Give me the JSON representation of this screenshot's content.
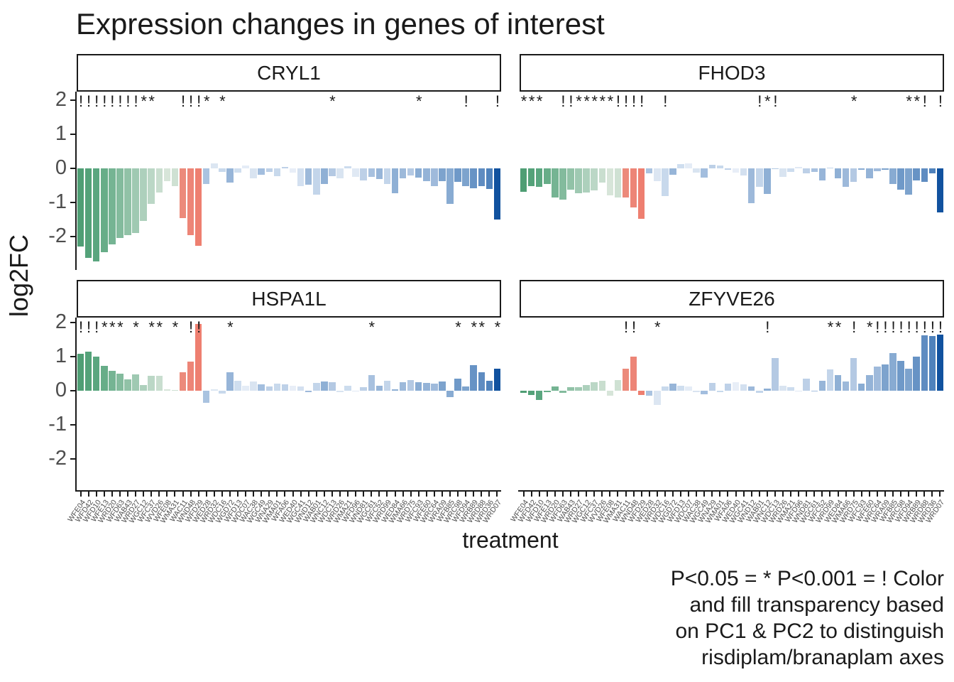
{
  "title": "Expression changes in genes of interest",
  "caption": {
    "lines": [
      "P<0.05 = * P<0.001 = ! Color",
      "and fill transparency based",
      "on PC1 & PC2 to distinguish",
      "risdiplam/branaplam axes"
    ]
  },
  "chart_data": {
    "type": "bar",
    "title": "Expression changes in genes of interest",
    "xlabel": "treatment",
    "ylabel": "log2FC",
    "yticks": [
      2,
      1,
      0,
      -1,
      -2
    ],
    "ylim": [
      -2.95,
      2.2
    ],
    "grid": false,
    "sig_legend": {
      "*": "P<0.05",
      "!": "P<0.001"
    },
    "color_note": "Color and fill transparency based on PC1 & PC2 to distinguish risdiplam/branaplam axes; greens then salmon then blues, same order in every facet",
    "categories": [
      "WFE04",
      "WFD42",
      "WFD10",
      "WFE13",
      "WRD20",
      "WFD63",
      "WAB43",
      "WRD27",
      "WGC12",
      "WFC37",
      "WVD26",
      "WFE08",
      "WMA31",
      "WAC11",
      "WND48",
      "WFD29",
      "WED28",
      "WRD32",
      "WDC16",
      "WGD72",
      "WFD13",
      "WDC07",
      "WAC38",
      "WGC49",
      "WNA29",
      "WMA01",
      "WFA06",
      "WED40",
      "WGC41",
      "WND12",
      "WAB01",
      "WNC12",
      "WDC13",
      "WRD26",
      "WMA21",
      "WFD96",
      "WND81",
      "WGC61",
      "WFC52",
      "WRD99",
      "WED84",
      "WMA66",
      "WRD75",
      "WFC93",
      "WFE60",
      "WRC64",
      "WRA09",
      "WFB85",
      "WRC98",
      "WFD94",
      "WRB89",
      "WRD88",
      "WRD36",
      "WRD07"
    ],
    "bar_colors": [
      "#4f9e74",
      "#54a279",
      "#5aa67f",
      "#67ad88",
      "#75b493",
      "#83bb9d",
      "#91c2a7",
      "#9fc9b2",
      "#add0bc",
      "#bbd7c6",
      "#c9decf",
      "#d7e5d9",
      "#cfe1d3",
      "#ec8a7b",
      "#ed8577",
      "#ee7f70",
      "#aac3e0",
      "#dce6f2",
      "#c8d9ec",
      "#97b5d8",
      "#cfdeef",
      "#e4ecf6",
      "#d9e4f1",
      "#a3bede",
      "#bdd0e7",
      "#c8d9ec",
      "#bed1e8",
      "#e8eef7",
      "#d3e0f0",
      "#9db9da",
      "#c3d5ea",
      "#8fb0d5",
      "#b4c9e3",
      "#d9e4f1",
      "#ccdcee",
      "#e0e9f4",
      "#bdd0e7",
      "#a8c1df",
      "#97b5d8",
      "#c3d5ea",
      "#8fb0d5",
      "#9db9da",
      "#b4c9e3",
      "#89acd3",
      "#94b3d7",
      "#9fbadb",
      "#7da3cd",
      "#88abd2",
      "#6f99c8",
      "#7da3cd",
      "#6793c5",
      "#5f8cc1",
      "#4f82bc",
      "#11529f"
    ],
    "facets": [
      {
        "name": "CRYL1",
        "values": [
          -2.3,
          -2.62,
          -2.72,
          -2.45,
          -2.22,
          -2.05,
          -1.95,
          -1.9,
          -1.55,
          -1.05,
          -0.7,
          -0.38,
          -0.52,
          -1.45,
          -1.95,
          -2.28,
          -0.45,
          0.15,
          -0.1,
          -0.42,
          -0.12,
          0.08,
          -0.3,
          -0.18,
          -0.1,
          -0.22,
          0.05,
          -0.12,
          -0.52,
          -0.48,
          -0.78,
          -0.45,
          -0.22,
          -0.3,
          0.07,
          -0.25,
          -0.35,
          -0.25,
          -0.32,
          -0.45,
          -0.72,
          -0.3,
          -0.2,
          -0.28,
          -0.38,
          -0.52,
          -0.38,
          -1.05,
          -0.4,
          -0.52,
          -0.58,
          -0.52,
          -0.6,
          -1.5
        ],
        "sig": [
          "!",
          "!",
          "!",
          "!",
          "!",
          "!",
          "!",
          "!",
          "*",
          "*",
          "",
          "",
          "",
          "!",
          "!",
          "!",
          "*",
          "",
          "*",
          "",
          "",
          "",
          "",
          "",
          "",
          "",
          "",
          "",
          "",
          "",
          "",
          "",
          "*",
          "",
          "",
          "",
          "",
          "",
          "",
          "",
          "",
          "",
          "",
          "*",
          "",
          "",
          "",
          "",
          "",
          "!",
          "",
          "",
          "",
          "!"
        ]
      },
      {
        "name": "FHOD3",
        "values": [
          -0.68,
          -0.52,
          -0.55,
          -0.45,
          -0.85,
          -0.92,
          -0.62,
          -0.72,
          -0.7,
          -0.65,
          -0.42,
          -0.8,
          -0.85,
          -0.85,
          -1.15,
          -1.48,
          -0.15,
          -0.38,
          -0.82,
          -0.18,
          0.12,
          0.15,
          -0.12,
          -0.28,
          0.1,
          0.08,
          -0.05,
          -0.12,
          -0.2,
          -1.02,
          -0.55,
          -0.75,
          -0.03,
          -0.25,
          -0.1,
          0.05,
          -0.15,
          -0.1,
          -0.35,
          0.03,
          -0.3,
          -0.55,
          -0.4,
          -0.05,
          -0.3,
          -0.08,
          -0.05,
          -0.45,
          -0.62,
          -0.78,
          -0.35,
          -0.4,
          -0.15,
          -1.3
        ],
        "sig": [
          "*",
          "*",
          "*",
          "",
          "",
          "!",
          "!",
          "*",
          "*",
          "*",
          "*",
          "*",
          "!",
          "!",
          "!",
          "!",
          "",
          "",
          "!",
          "",
          "",
          "",
          "",
          "",
          "",
          "",
          "",
          "",
          "",
          "",
          "!",
          "*",
          "!",
          "",
          "",
          "",
          "",
          "",
          "",
          "",
          "",
          "",
          "*",
          "",
          "",
          "",
          "",
          "",
          "",
          "*",
          "*",
          "!",
          "",
          "!"
        ]
      },
      {
        "name": "HSPA1L",
        "values": [
          1.08,
          1.15,
          1.0,
          0.72,
          0.58,
          0.5,
          0.33,
          0.48,
          0.17,
          0.44,
          0.44,
          0.05,
          0.03,
          0.55,
          0.85,
          1.95,
          -0.35,
          0.05,
          -0.08,
          0.55,
          0.3,
          0.15,
          0.28,
          0.18,
          0.12,
          0.2,
          0.18,
          0.15,
          0.12,
          -0.05,
          0.22,
          0.28,
          0.25,
          -0.05,
          0.15,
          0.0,
          0.1,
          0.45,
          0.15,
          0.3,
          0.05,
          0.25,
          0.32,
          0.25,
          0.22,
          0.2,
          0.28,
          -0.18,
          0.35,
          0.12,
          0.75,
          0.55,
          0.3,
          0.65
        ],
        "sig": [
          "!",
          "!",
          "!",
          "*",
          "*",
          "*",
          "",
          "*",
          "",
          "*",
          "*",
          "",
          "*",
          "",
          "!",
          "!",
          "",
          "",
          "",
          "*",
          "",
          "",
          "",
          "",
          "",
          "",
          "",
          "",
          "",
          "",
          "",
          "",
          "",
          "",
          "",
          "",
          "",
          "*",
          "",
          "",
          "",
          "",
          "",
          "",
          "",
          "",
          "",
          "",
          "*",
          "",
          "*",
          "*",
          "",
          "*"
        ]
      },
      {
        "name": "ZFYVE26",
        "values": [
          -0.07,
          -0.12,
          -0.28,
          -0.04,
          0.12,
          -0.06,
          0.1,
          0.1,
          0.16,
          0.24,
          0.3,
          -0.14,
          0.32,
          0.65,
          1.0,
          -0.12,
          -0.15,
          -0.42,
          0.12,
          0.2,
          0.14,
          0.12,
          -0.05,
          -0.1,
          0.22,
          -0.04,
          0.2,
          0.24,
          0.18,
          0.12,
          -0.06,
          0.06,
          0.95,
          0.14,
          0.1,
          0.0,
          0.35,
          0.0,
          0.3,
          0.62,
          0.45,
          0.28,
          0.95,
          0.2,
          0.45,
          0.7,
          0.78,
          1.1,
          0.88,
          0.65,
          1.0,
          1.62,
          1.6,
          1.65
        ],
        "sig": [
          "",
          "",
          "",
          "",
          "",
          "",
          "",
          "",
          "",
          "",
          "",
          "",
          "",
          "!",
          "!",
          "",
          "",
          "*",
          "",
          "",
          "",
          "",
          "",
          "",
          "",
          "",
          "",
          "",
          "",
          "",
          "",
          "!",
          "",
          "",
          "",
          "",
          "",
          "",
          "",
          "*",
          "*",
          "",
          "!",
          "",
          "*",
          "!",
          "!",
          "!",
          "!",
          "!",
          "!",
          "!",
          "!",
          "!"
        ]
      }
    ]
  }
}
